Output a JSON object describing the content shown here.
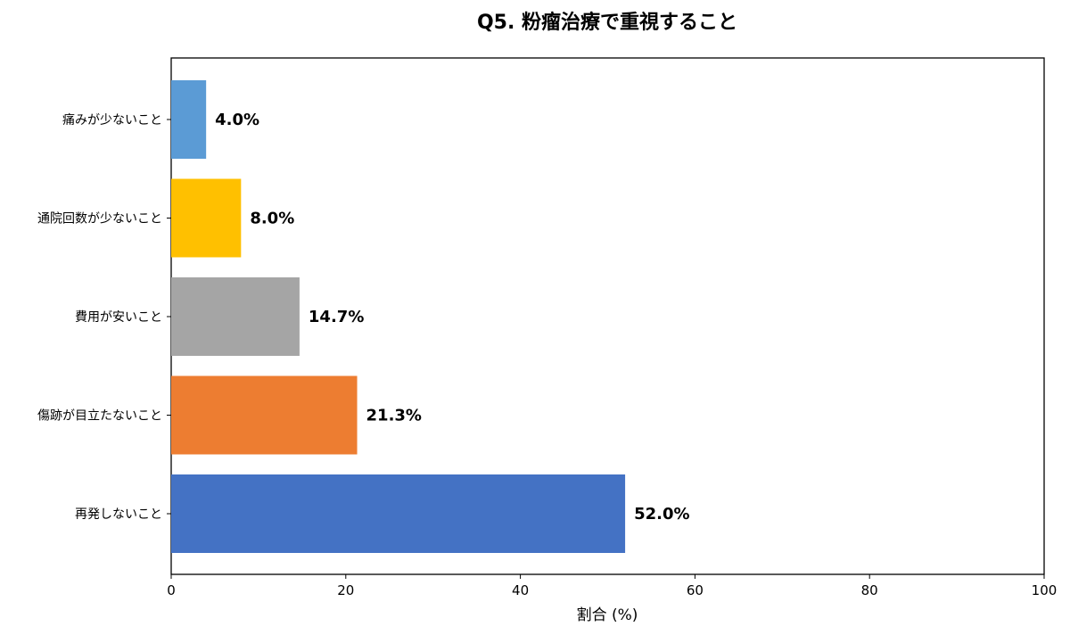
{
  "chart_data": {
    "type": "bar",
    "orientation": "horizontal",
    "title": "Q5. 粉瘤治療で重視すること",
    "xlabel": "割合 (%)",
    "ylabel": "",
    "xlim": [
      0,
      100
    ],
    "xticks": [
      "0",
      "20",
      "40",
      "60",
      "80",
      "100"
    ],
    "grid": false,
    "categories": [
      "痛みが少ないこと",
      "通院回数が少ないこと",
      "費用が安いこと",
      "傷跡が目立たないこと",
      "再発しないこと"
    ],
    "values": [
      4.0,
      8.0,
      14.7,
      21.3,
      52.0
    ],
    "value_labels": [
      "4.0%",
      "8.0%",
      "14.7%",
      "21.3%",
      "52.0%"
    ],
    "colors": [
      "#5b9bd5",
      "#ffc000",
      "#a5a5a5",
      "#ed7d31",
      "#4472c4"
    ]
  }
}
